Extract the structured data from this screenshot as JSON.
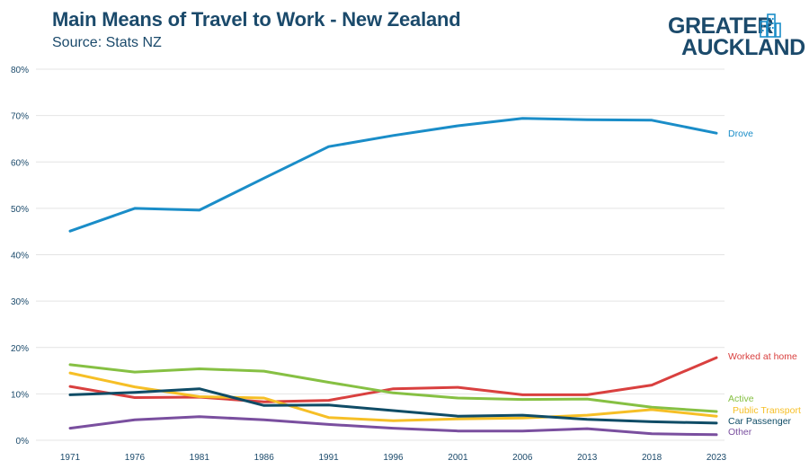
{
  "header": {
    "title": "Main Means of Travel to Work - New Zealand",
    "subtitle": "Source: Stats NZ"
  },
  "logo": {
    "line1": "GREATER",
    "line2": "AUCKLAND",
    "color": "#1b4a6b",
    "icon": "building-skyline-icon"
  },
  "chart_data": {
    "type": "line",
    "title": "Main Means of Travel to Work - New Zealand",
    "subtitle": "Source: Stats NZ",
    "xlabel": "",
    "ylabel": "",
    "x": [
      "1971",
      "1976",
      "1981",
      "1986",
      "1991",
      "1996",
      "2001",
      "2006",
      "2013",
      "2018",
      "2023"
    ],
    "ylim": [
      0,
      80
    ],
    "yticks": [
      "0%",
      "10%",
      "20%",
      "30%",
      "40%",
      "50%",
      "60%",
      "70%",
      "80%"
    ],
    "grid": "horizontal",
    "legend": "inline labels at line ends",
    "series": [
      {
        "name": "Drove",
        "color": "#1a8dc8",
        "values": [
          45.1,
          50.0,
          49.6,
          56.5,
          63.3,
          65.7,
          67.8,
          69.4,
          69.1,
          69.0,
          66.2
        ]
      },
      {
        "name": "Worked at home",
        "color": "#d9403f",
        "values": [
          11.6,
          9.2,
          9.3,
          8.3,
          8.6,
          11.1,
          11.4,
          9.8,
          9.8,
          11.9,
          17.8
        ]
      },
      {
        "name": "Active",
        "color": "#86c043",
        "values": [
          16.3,
          14.7,
          15.4,
          14.9,
          12.5,
          10.2,
          9.1,
          8.8,
          8.9,
          7.1,
          6.2
        ]
      },
      {
        "name": "Public Transport",
        "color": "#f6bf26",
        "values": [
          14.5,
          11.5,
          9.4,
          9.1,
          4.9,
          4.2,
          4.6,
          4.8,
          5.4,
          6.6,
          5.2
        ]
      },
      {
        "name": "Car Passenger",
        "color": "#0f4c66",
        "values": [
          9.8,
          10.3,
          11.1,
          7.5,
          7.6,
          6.4,
          5.2,
          5.4,
          4.5,
          4.0,
          3.7
        ]
      },
      {
        "name": "Other",
        "color": "#7a4f9f",
        "values": [
          2.6,
          4.4,
          5.1,
          4.4,
          3.4,
          2.6,
          2.0,
          2.0,
          2.5,
          1.4,
          1.2
        ]
      }
    ]
  }
}
